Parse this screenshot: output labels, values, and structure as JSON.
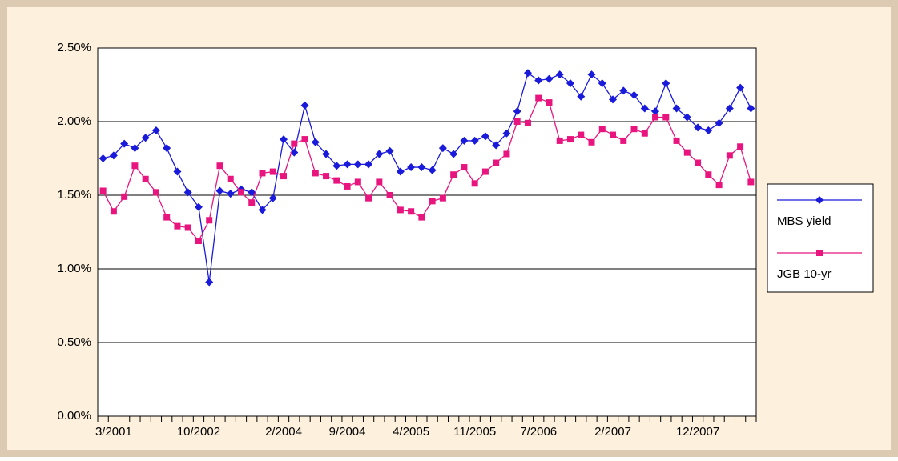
{
  "chart_data": {
    "type": "line",
    "categories": [
      null,
      "3/2001",
      null,
      null,
      null,
      null,
      null,
      null,
      null,
      "10/2002",
      null,
      null,
      null,
      null,
      null,
      null,
      null,
      "2/2004",
      null,
      null,
      null,
      null,
      null,
      "9/2004",
      null,
      null,
      null,
      null,
      null,
      "4/2005",
      null,
      null,
      null,
      null,
      null,
      "11/2005",
      null,
      null,
      null,
      null,
      null,
      "7/2006",
      null,
      null,
      null,
      null,
      null,
      null,
      "2/2007",
      null,
      null,
      null,
      null,
      null,
      null,
      null,
      "12/2007",
      null,
      null,
      null,
      null,
      null
    ],
    "series": [
      {
        "name": "MBS yield",
        "color": "#1a1adb",
        "marker": "diamond",
        "values": [
          1.75,
          1.77,
          1.85,
          1.82,
          1.89,
          1.94,
          1.82,
          1.66,
          1.52,
          1.42,
          0.91,
          1.53,
          1.51,
          1.54,
          1.52,
          1.4,
          1.48,
          1.88,
          1.79,
          2.11,
          1.86,
          1.78,
          1.7,
          1.71,
          1.71,
          1.71,
          1.78,
          1.8,
          1.66,
          1.69,
          1.69,
          1.67,
          1.82,
          1.78,
          1.87,
          1.87,
          1.9,
          1.84,
          1.92,
          2.07,
          2.33,
          2.28,
          2.29,
          2.32,
          2.26,
          2.17,
          2.32,
          2.26,
          2.15,
          2.21,
          2.18,
          2.09,
          2.07,
          2.26,
          2.09,
          2.03,
          1.96,
          1.94,
          1.99,
          2.09,
          2.23,
          2.09
        ]
      },
      {
        "name": "JGB 10-yr",
        "color": "#e8157f",
        "marker": "square",
        "values": [
          1.53,
          1.39,
          1.49,
          1.7,
          1.61,
          1.52,
          1.35,
          1.29,
          1.28,
          1.19,
          1.33,
          1.7,
          1.61,
          1.52,
          1.45,
          1.65,
          1.66,
          1.63,
          1.85,
          1.88,
          1.65,
          1.63,
          1.6,
          1.56,
          1.59,
          1.48,
          1.59,
          1.5,
          1.4,
          1.39,
          1.35,
          1.46,
          1.48,
          1.64,
          1.69,
          1.58,
          1.66,
          1.72,
          1.78,
          2.0,
          1.99,
          2.16,
          2.13,
          1.87,
          1.88,
          1.91,
          1.86,
          1.95,
          1.91,
          1.87,
          1.95,
          1.92,
          2.03,
          2.03,
          1.87,
          1.79,
          1.72,
          1.64,
          1.57,
          1.77,
          1.83,
          1.59
        ]
      }
    ],
    "ylim": [
      0,
      2.5
    ],
    "yticks": [
      {
        "value": 0,
        "label": "0.00%"
      },
      {
        "value": 0.5,
        "label": "0.50%"
      },
      {
        "value": 1,
        "label": "1.00%"
      },
      {
        "value": 1.5,
        "label": "1.50%"
      },
      {
        "value": 2,
        "label": "2.00%"
      },
      {
        "value": 2.5,
        "label": "2.50%"
      }
    ],
    "grid": true,
    "legend": "right"
  }
}
